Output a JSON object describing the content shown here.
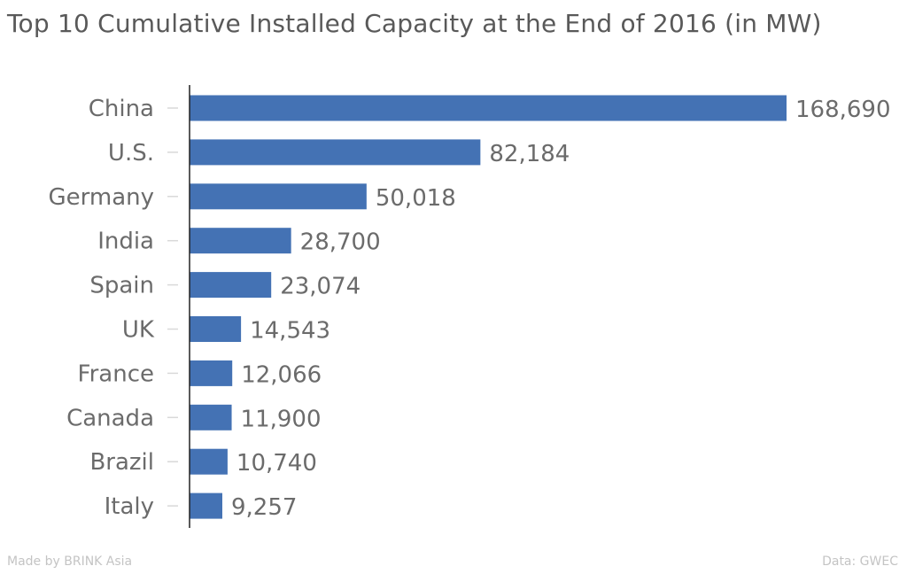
{
  "chart_data": {
    "type": "bar",
    "orientation": "horizontal",
    "title": "Top 10 Cumulative Installed Capacity at the End of 2016 (in MW)",
    "categories": [
      "China",
      "U.S.",
      "Germany",
      "India",
      "Spain",
      "UK",
      "France",
      "Canada",
      "Brazil",
      "Italy"
    ],
    "values": [
      168690,
      82184,
      50018,
      28700,
      23074,
      14543,
      12066,
      11900,
      10740,
      9257
    ],
    "value_labels": [
      "168,690",
      "82,184",
      "50,018",
      "28,700",
      "23,074",
      "14,543",
      "12,066",
      "11,900",
      "10,740",
      "9,257"
    ],
    "xlim": [
      0,
      168690
    ],
    "grid": false,
    "bar_color": "#4472b4"
  },
  "footer": {
    "credit": "Made by BRINK Asia",
    "source": "Data: GWEC"
  }
}
